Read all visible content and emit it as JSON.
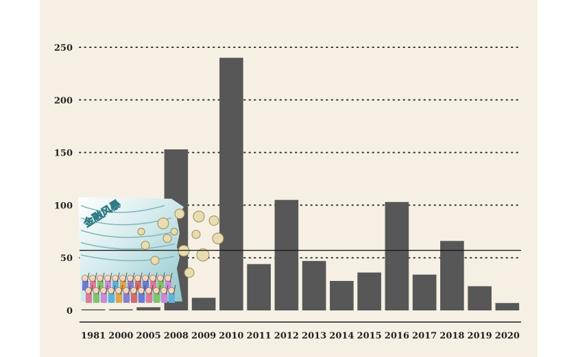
{
  "chart_data": {
    "type": "bar",
    "title": "",
    "xlabel": "",
    "ylabel": "",
    "categories": [
      "1981",
      "2000",
      "2005",
      "2008",
      "2009",
      "2010",
      "2011",
      "2012",
      "2013",
      "2014",
      "2015",
      "2016",
      "2017",
      "2018",
      "2019",
      "2020"
    ],
    "values": [
      1,
      1,
      3,
      153,
      12,
      240,
      44,
      105,
      47,
      28,
      36,
      103,
      34,
      66,
      23,
      7
    ],
    "ylim": [
      0,
      250
    ],
    "yticks": [
      "0",
      "50",
      "100",
      "150",
      "200",
      "250"
    ],
    "grid": "horizontal dotted",
    "reference_line": 57,
    "colors": {
      "bar": "#575757",
      "background": "#f6f0e4",
      "text": "#222222"
    }
  },
  "illustration": {
    "caption": "金融风暴",
    "description_icon": "financial-storm-cartoon"
  }
}
